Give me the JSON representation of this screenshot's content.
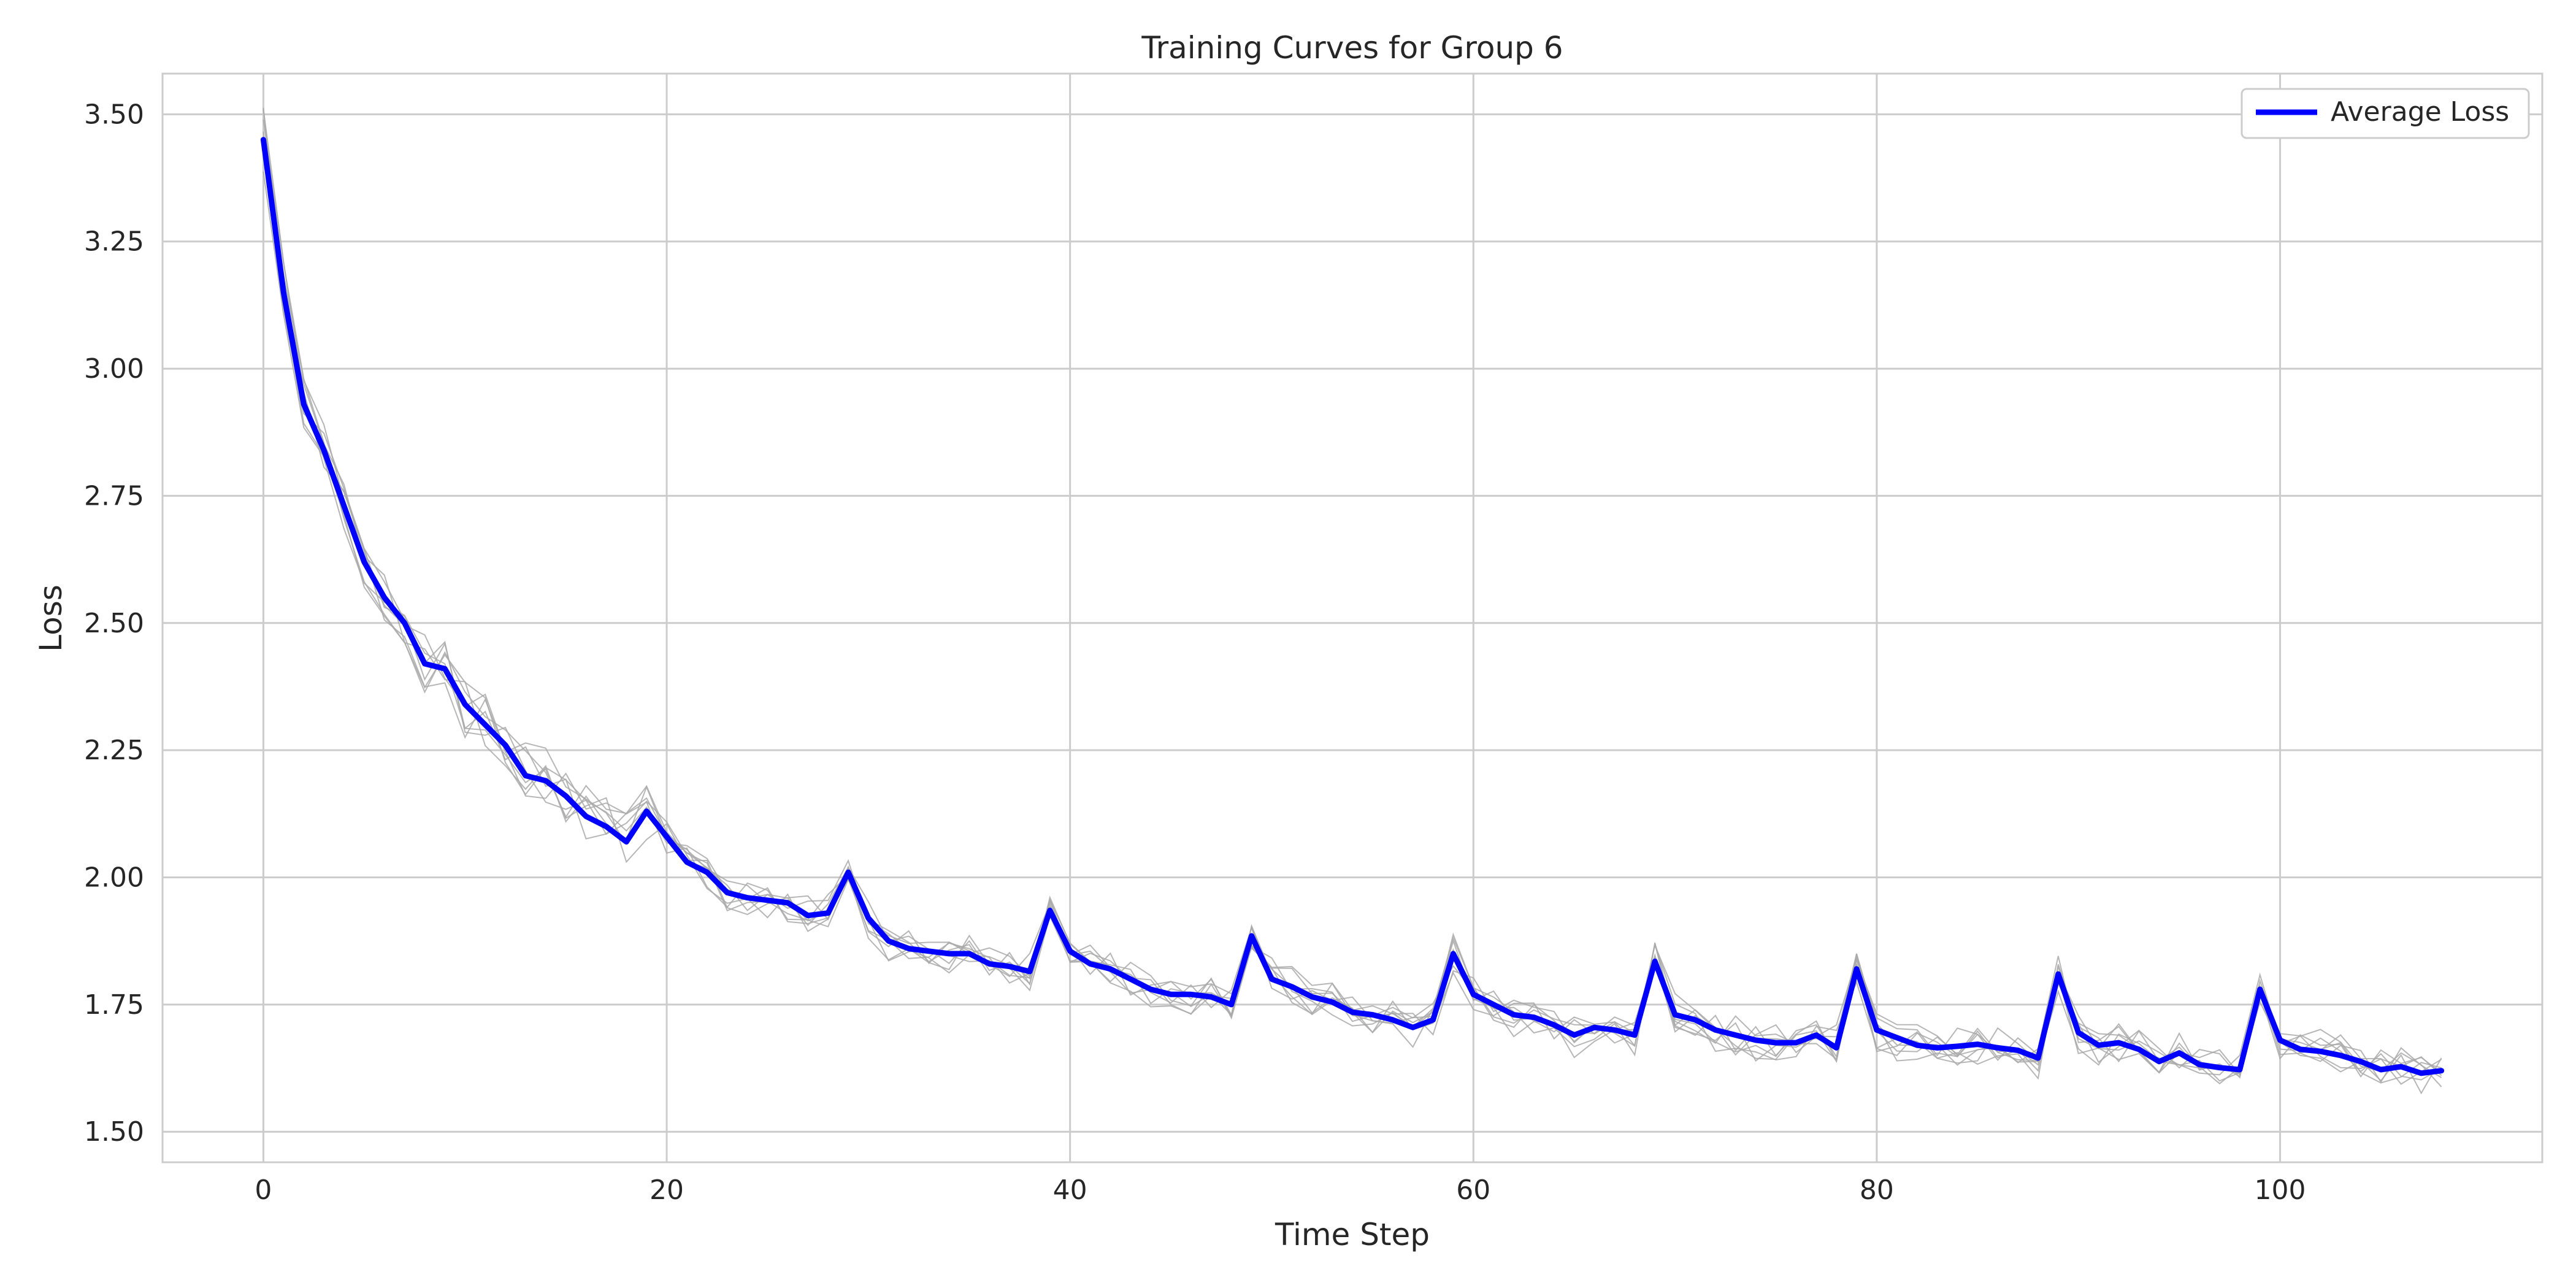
{
  "chart_data": {
    "type": "line",
    "title": "Training Curves for Group 6",
    "xlabel": "Time Step",
    "ylabel": "Loss",
    "xlim": [
      -5,
      113
    ],
    "ylim": [
      1.44,
      3.58
    ],
    "xticks": [
      0,
      20,
      40,
      60,
      80,
      100
    ],
    "yticks": [
      1.5,
      1.75,
      2.0,
      2.25,
      2.5,
      2.75,
      3.0,
      3.25,
      3.5
    ],
    "xtick_labels": [
      "0",
      "20",
      "40",
      "60",
      "80",
      "100"
    ],
    "ytick_labels": [
      "1.50",
      "1.75",
      "2.00",
      "2.25",
      "2.50",
      "2.75",
      "3.00",
      "3.25",
      "3.50"
    ],
    "grid": true,
    "legend_position": "top-right",
    "legend": [
      "Average Loss"
    ],
    "series": [
      {
        "name": "Average Loss",
        "color": "#0000ff",
        "x_start": 0,
        "x_step": 1,
        "values": [
          3.45,
          3.15,
          2.93,
          2.84,
          2.73,
          2.62,
          2.55,
          2.5,
          2.42,
          2.41,
          2.34,
          2.3,
          2.26,
          2.2,
          2.19,
          2.16,
          2.12,
          2.1,
          2.07,
          2.13,
          2.08,
          2.03,
          2.01,
          1.97,
          1.96,
          1.955,
          1.95,
          1.925,
          1.93,
          2.01,
          1.92,
          1.875,
          1.86,
          1.855,
          1.85,
          1.85,
          1.83,
          1.825,
          1.815,
          1.935,
          1.855,
          1.83,
          1.82,
          1.8,
          1.78,
          1.77,
          1.77,
          1.765,
          1.75,
          1.885,
          1.8,
          1.785,
          1.765,
          1.755,
          1.735,
          1.73,
          1.72,
          1.705,
          1.72,
          1.85,
          1.77,
          1.75,
          1.73,
          1.725,
          1.71,
          1.69,
          1.705,
          1.7,
          1.69,
          1.835,
          1.73,
          1.72,
          1.7,
          1.69,
          1.68,
          1.675,
          1.675,
          1.69,
          1.665,
          1.82,
          1.7,
          1.685,
          1.67,
          1.665,
          1.668,
          1.672,
          1.665,
          1.66,
          1.645,
          1.81,
          1.695,
          1.67,
          1.675,
          1.662,
          1.638,
          1.655,
          1.632,
          1.626,
          1.622,
          1.78,
          1.68,
          1.662,
          1.658,
          1.65,
          1.638,
          1.622,
          1.628,
          1.615,
          1.62
        ]
      }
    ],
    "background_runs": {
      "color": "#a9a9a9",
      "count": 8,
      "note_free": true
    }
  }
}
